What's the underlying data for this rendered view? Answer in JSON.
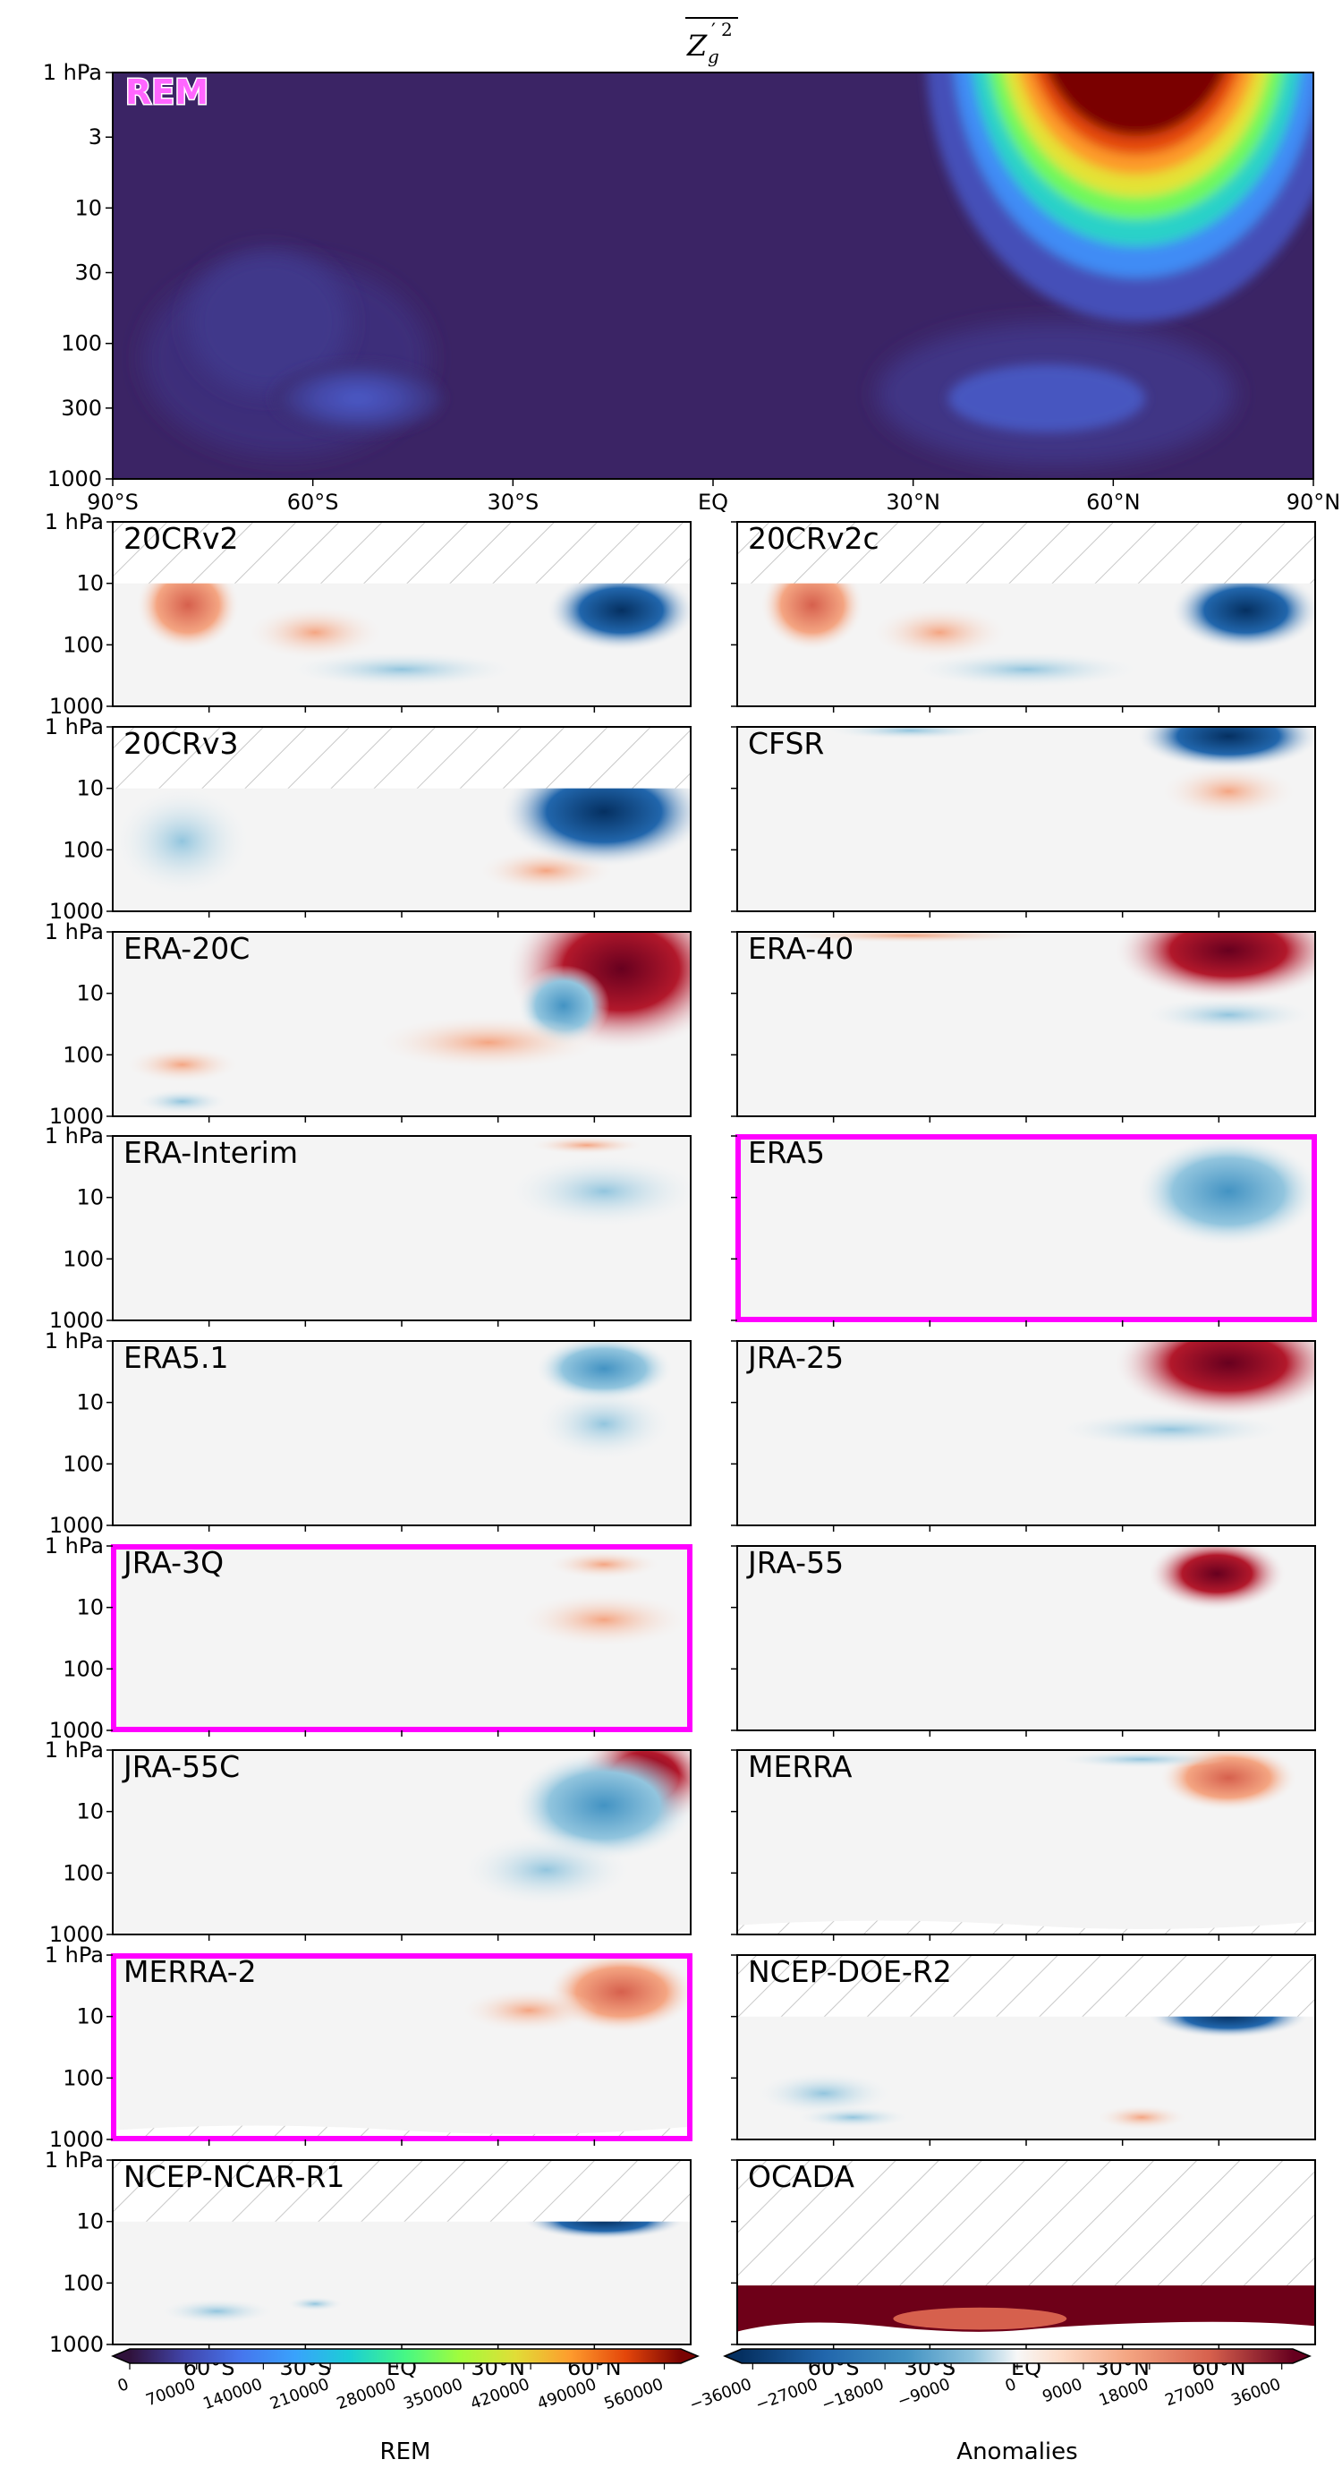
{
  "chart_data": [
    {
      "type": "heatmap",
      "name": "REM",
      "title": "Z'g² (zonal-mean, overlined)",
      "xlabel": "",
      "ylabel": "",
      "xticks": [
        "90°S",
        "60°S",
        "30°S",
        "EQ",
        "30°N",
        "60°N",
        "90°N"
      ],
      "yticks": [
        "1 hPa",
        "3",
        "10",
        "30",
        "100",
        "300",
        "1000"
      ],
      "features": [
        {
          "lat": 70,
          "pressure_hPa": 1,
          "value": "> 560000"
        },
        {
          "lat": 55,
          "pressure_hPa": 300,
          "value": 80000
        },
        {
          "lat": -62,
          "pressure_hPa": 300,
          "value": 70000
        },
        {
          "lat": -70,
          "pressure_hPa": 50,
          "value": 30000
        }
      ]
    },
    {
      "type": "heatmap",
      "name": "Anomalies",
      "panels": [
        "20CRv2",
        "20CRv2c",
        "20CRv3",
        "CFSR",
        "ERA-20C",
        "ERA-40",
        "ERA-Interim",
        "ERA5",
        "ERA5.1",
        "JRA-25",
        "JRA-3Q",
        "JRA-55",
        "JRA-55C",
        "MERRA",
        "MERRA-2",
        "NCEP-DOE-R2",
        "NCEP-NCAR-R1",
        "OCADA"
      ],
      "highlighted": [
        "ERA5",
        "JRA-3Q",
        "MERRA-2"
      ]
    }
  ],
  "figure": {
    "title_main": "Z",
    "title_sub": "g",
    "title_prime": "′",
    "title_power": "2",
    "rem_label": "REM",
    "top_yticks": [
      "1 hPa",
      "3",
      "10",
      "30",
      "100",
      "300",
      "1000"
    ],
    "top_xticks": [
      "90°S",
      "60°S",
      "30°S",
      "EQ",
      "30°N",
      "60°N",
      "90°N"
    ],
    "panel_yticks": [
      "1 hPa",
      "10",
      "100",
      "1000"
    ],
    "bottom_xticks": [
      "60°S",
      "30°S",
      "EQ",
      "30°N",
      "60°N"
    ],
    "panels": [
      {
        "label": "20CRv2",
        "hatch_top": true
      },
      {
        "label": "20CRv2c",
        "hatch_top": true
      },
      {
        "label": "20CRv3",
        "hatch_top": true
      },
      {
        "label": "CFSR"
      },
      {
        "label": "ERA-20C"
      },
      {
        "label": "ERA-40"
      },
      {
        "label": "ERA-Interim"
      },
      {
        "label": "ERA5",
        "highlight": true
      },
      {
        "label": "ERA5.1"
      },
      {
        "label": "JRA-25"
      },
      {
        "label": "JRA-3Q",
        "highlight": true
      },
      {
        "label": "JRA-55"
      },
      {
        "label": "JRA-55C"
      },
      {
        "label": "MERRA"
      },
      {
        "label": "MERRA-2",
        "highlight": true
      },
      {
        "label": "NCEP-DOE-R2",
        "hatch_top": true
      },
      {
        "label": "NCEP-NCAR-R1",
        "hatch_top": true
      },
      {
        "label": "OCADA"
      }
    ],
    "colorbar_rem": {
      "label": "REM",
      "ticks": [
        "0",
        "70000",
        "140000",
        "210000",
        "280000",
        "350000",
        "420000",
        "490000",
        "560000"
      ]
    },
    "colorbar_anom": {
      "label": "Anomalies",
      "ticks": [
        "−36000",
        "−27000",
        "−18000",
        "−9000",
        "0",
        "9000",
        "18000",
        "27000",
        "36000"
      ]
    },
    "colors": {
      "highlight": "#ff00ff",
      "rem_background": "#3b2465",
      "rem_high": "#7a0000",
      "anom_neutral": "#f4f4f4",
      "anom_negative": "#053061",
      "anom_positive": "#67001f"
    }
  }
}
